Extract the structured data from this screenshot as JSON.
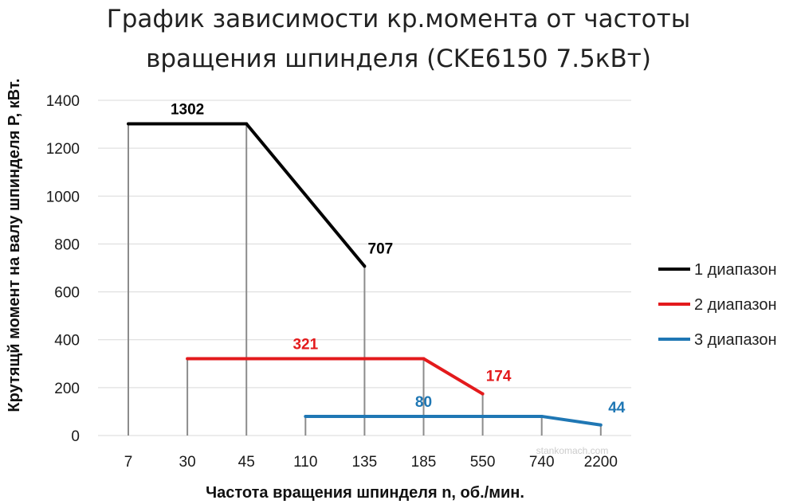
{
  "title_lines": [
    "График зависимости кр.момента от частоты",
    "вращения шпинделя (CKE6150 7.5кВт)"
  ],
  "watermark": "stankomach.com",
  "chart_data": {
    "type": "line",
    "title": "График зависимости кр.момента от частоты вращения шпинделя (CKE6150 7.5кВт)",
    "xlabel": "Частота вращения шпинделя n, об./мин.",
    "ylabel": "Крутящй момент на валу шпинделя P, кВт.",
    "x_scale": "categorical",
    "categories": [
      "7",
      "30",
      "45",
      "110",
      "135",
      "185",
      "550",
      "740",
      "2200"
    ],
    "ylim": [
      0,
      1400
    ],
    "yticks": [
      0,
      200,
      400,
      600,
      800,
      1000,
      1200,
      1400
    ],
    "grid": "horizontal",
    "legend_position": "right",
    "series": [
      {
        "name": "1 диапазон",
        "color": "#000000",
        "points": [
          {
            "x": "7",
            "y": 1302
          },
          {
            "x": "45",
            "y": 1302
          },
          {
            "x": "135",
            "y": 707
          }
        ],
        "labels": [
          {
            "at": 0,
            "text": "1302"
          },
          {
            "at": 2,
            "text": "707"
          }
        ]
      },
      {
        "name": "2 диапазон",
        "color": "#e31a1c",
        "points": [
          {
            "x": "30",
            "y": 321
          },
          {
            "x": "185",
            "y": 321
          },
          {
            "x": "550",
            "y": 174
          }
        ],
        "labels": [
          {
            "at": 0,
            "text": "321"
          },
          {
            "at": 2,
            "text": "174"
          }
        ]
      },
      {
        "name": "3 диапазон",
        "color": "#1f77b4",
        "points": [
          {
            "x": "110",
            "y": 80
          },
          {
            "x": "740",
            "y": 80
          },
          {
            "x": "2200",
            "y": 44
          }
        ],
        "labels": [
          {
            "at": 0,
            "text": "80"
          },
          {
            "at": 2,
            "text": "44"
          }
        ]
      }
    ]
  }
}
